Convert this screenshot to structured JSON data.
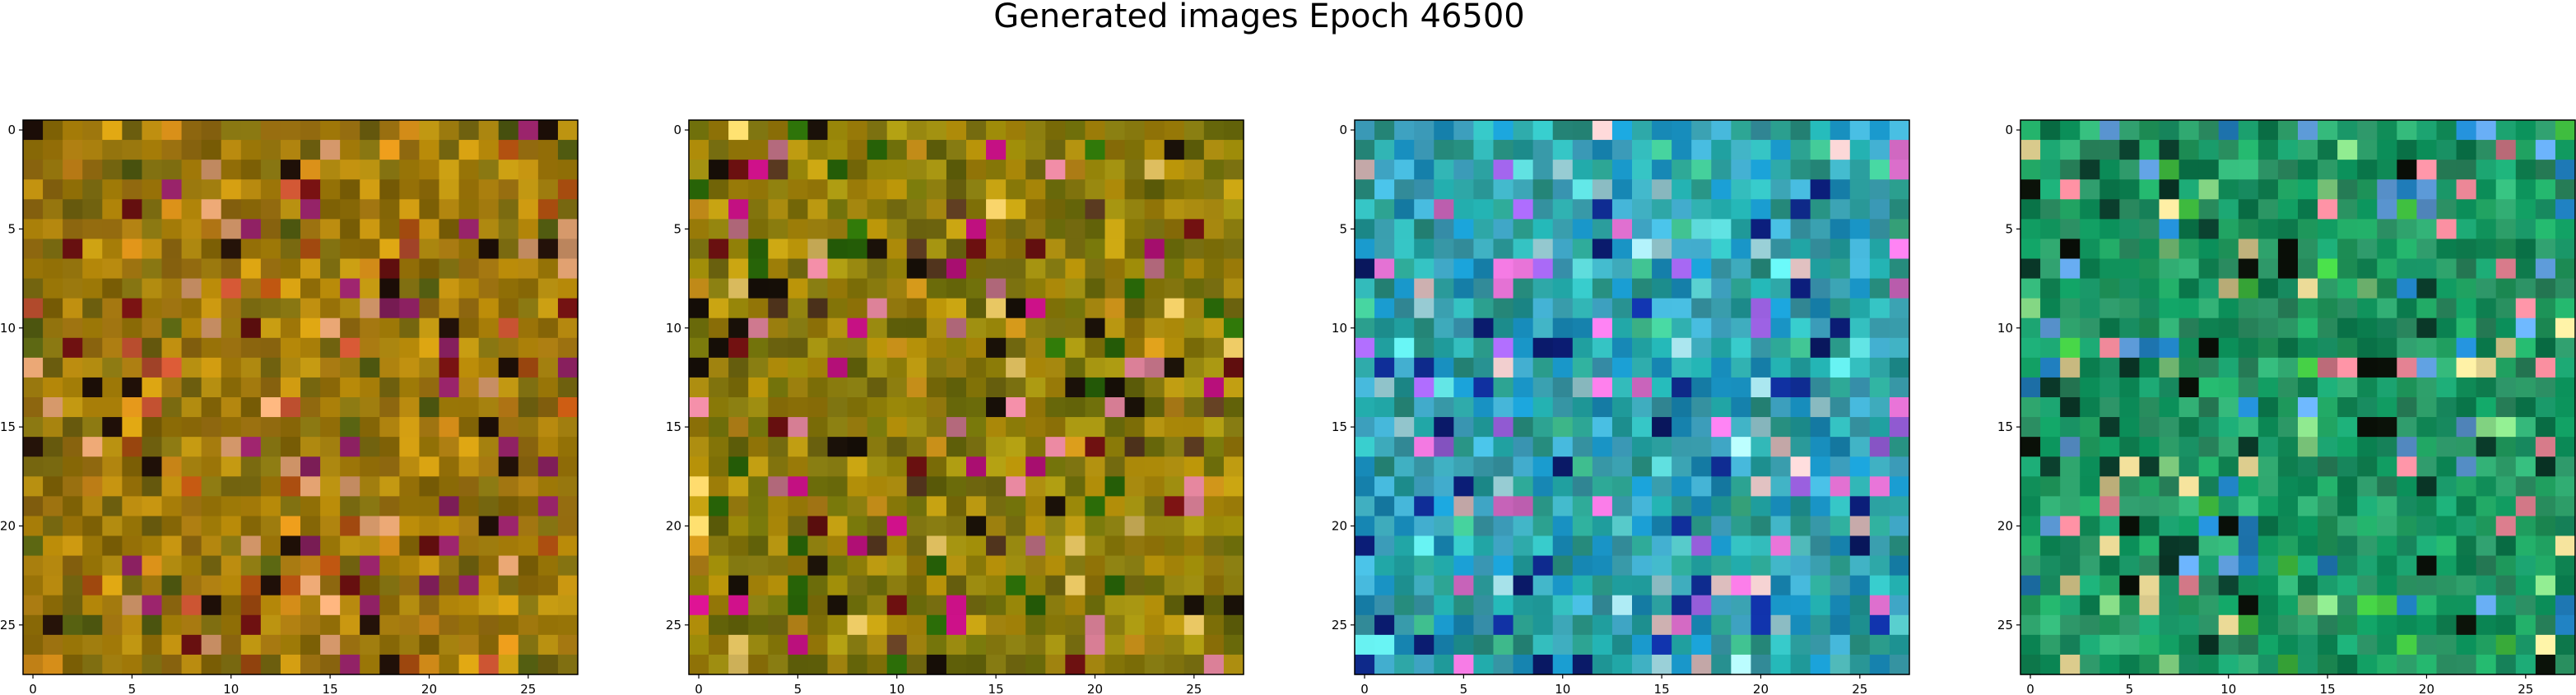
{
  "figure": {
    "title": "Generated images Epoch 46500"
  },
  "chart_data": [
    {
      "type": "heatmap",
      "title": "",
      "xlabel": "",
      "ylabel": "",
      "grid": false,
      "grid_size": 28,
      "xlim": [
        -0.5,
        27.5
      ],
      "ylim": [
        27.5,
        -0.5
      ],
      "x_ticks": [
        "0",
        "5",
        "10",
        "15",
        "20",
        "25"
      ],
      "y_ticks": [
        "0",
        "5",
        "10",
        "15",
        "20",
        "25"
      ],
      "colors": {
        "dominant": [
          "#a07808",
          "#b08a10",
          "#8a6a06",
          "#c09010",
          "#7a6a10",
          "#9a7010"
        ],
        "accent": [
          "#d08a18",
          "#b05010",
          "#6a1010",
          "#201008",
          "#e0a070",
          "#8a2060",
          "#c05030",
          "#505a10"
        ]
      }
    },
    {
      "type": "heatmap",
      "title": "",
      "xlabel": "",
      "ylabel": "",
      "grid": false,
      "grid_size": 28,
      "xlim": [
        -0.5,
        27.5
      ],
      "ylim": [
        27.5,
        -0.5
      ],
      "x_ticks": [
        "0",
        "5",
        "10",
        "15",
        "20",
        "25"
      ],
      "y_ticks": [
        "0",
        "5",
        "10",
        "15",
        "20",
        "25"
      ],
      "colors": {
        "dominant": [
          "#a08008",
          "#8a7a08",
          "#b09010",
          "#7a7010",
          "#9a8a10",
          "#6a6a0a"
        ],
        "accent": [
          "#c08a18",
          "#2a6a08",
          "#6a1010",
          "#181008",
          "#d07a90",
          "#c01080",
          "#e0c060",
          "#5a3a20"
        ]
      }
    },
    {
      "type": "heatmap",
      "title": "",
      "xlabel": "",
      "ylabel": "",
      "grid": false,
      "grid_size": 28,
      "xlim": [
        -0.5,
        27.5
      ],
      "ylim": [
        27.5,
        -0.5
      ],
      "x_ticks": [
        "0",
        "5",
        "10",
        "15",
        "20",
        "25"
      ],
      "y_ticks": [
        "0",
        "5",
        "10",
        "15",
        "20",
        "25"
      ],
      "colors": {
        "dominant": [
          "#20a0a0",
          "#30b0b0",
          "#1890c0",
          "#40a8c8",
          "#2a9a8a",
          "#3aa0b0"
        ],
        "accent": [
          "#1030a0",
          "#0a1a6a",
          "#60e0e0",
          "#a0d8e0",
          "#e0c0c0",
          "#e070d0",
          "#9a60e0",
          "#40c090"
        ]
      }
    },
    {
      "type": "heatmap",
      "title": "",
      "xlabel": "",
      "ylabel": "",
      "grid": false,
      "grid_size": 28,
      "xlim": [
        -0.5,
        27.5
      ],
      "ylim": [
        27.5,
        -0.5
      ],
      "x_ticks": [
        "0",
        "5",
        "10",
        "15",
        "20",
        "25"
      ],
      "y_ticks": [
        "0",
        "5",
        "10",
        "15",
        "20",
        "25"
      ],
      "colors": {
        "dominant": [
          "#10905a",
          "#20a060",
          "#0a8050",
          "#30a870",
          "#1a9a6a",
          "#2a8a60"
        ],
        "accent": [
          "#0a3a2a",
          "#0a1008",
          "#40c040",
          "#80d080",
          "#e0d090",
          "#e08090",
          "#2080c0",
          "#60a0e0"
        ]
      }
    }
  ]
}
